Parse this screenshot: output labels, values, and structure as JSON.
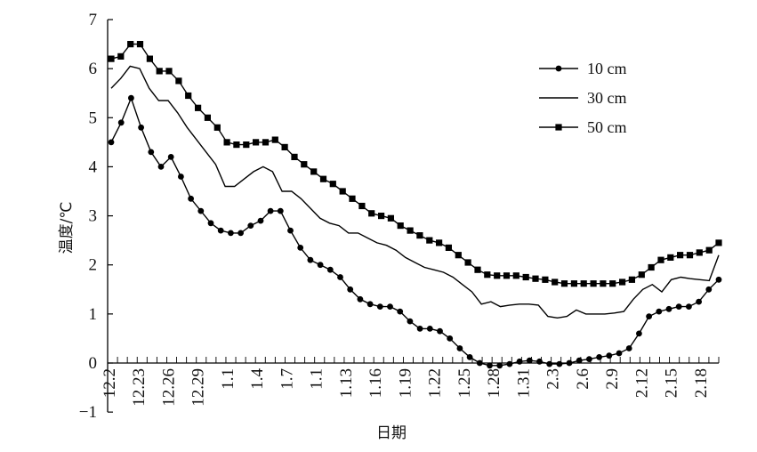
{
  "chart_data": {
    "type": "line",
    "title": "",
    "xlabel": "日期",
    "ylabel": "温度/℃",
    "ylim": [
      -1,
      7
    ],
    "yticks": [
      -1,
      0,
      1,
      2,
      3,
      4,
      5,
      6,
      7
    ],
    "xtick_labels": [
      "12.2",
      "12.23",
      "12.26",
      "12.29",
      "1.1",
      "1.4",
      "1.7",
      "1.1",
      "1.13",
      "1.16",
      "1.19",
      "1.22",
      "1.25",
      "1.28",
      "1.31",
      "2.3",
      "2.6",
      "2.9",
      "2.12",
      "2.15",
      "2.18"
    ],
    "grid": false,
    "legend_position": "top-right",
    "series": [
      {
        "name": "10 cm",
        "marker": "circle",
        "color": "#000000",
        "values": [
          4.5,
          4.9,
          5.4,
          4.8,
          4.3,
          4.0,
          4.2,
          3.8,
          3.35,
          3.1,
          2.85,
          2.7,
          2.65,
          2.65,
          2.8,
          2.9,
          3.1,
          3.1,
          2.7,
          2.35,
          2.1,
          2.0,
          1.9,
          1.75,
          1.5,
          1.3,
          1.2,
          1.15,
          1.15,
          1.05,
          0.85,
          0.7,
          0.7,
          0.65,
          0.5,
          0.3,
          0.12,
          0.0,
          -0.05,
          -0.05,
          -0.02,
          0.03,
          0.05,
          0.03,
          -0.02,
          -0.02,
          0.0,
          0.05,
          0.08,
          0.12,
          0.15,
          0.2,
          0.3,
          0.6,
          0.95,
          1.05,
          1.1,
          1.15,
          1.15,
          1.25,
          1.5,
          1.7
        ]
      },
      {
        "name": "30 cm",
        "marker": "none",
        "color": "#000000",
        "values": [
          5.6,
          5.8,
          6.05,
          6.0,
          5.6,
          5.35,
          5.35,
          5.1,
          4.8,
          4.55,
          4.3,
          4.05,
          3.6,
          3.6,
          3.75,
          3.9,
          4.0,
          3.9,
          3.5,
          3.5,
          3.35,
          3.15,
          2.95,
          2.85,
          2.8,
          2.65,
          2.65,
          2.55,
          2.45,
          2.4,
          2.3,
          2.15,
          2.05,
          1.95,
          1.9,
          1.85,
          1.75,
          1.6,
          1.45,
          1.2,
          1.25,
          1.15,
          1.18,
          1.2,
          1.2,
          1.18,
          0.95,
          0.92,
          0.95,
          1.08,
          1.0,
          1.0,
          1.0,
          1.02,
          1.05,
          1.3,
          1.5,
          1.6,
          1.45,
          1.7,
          1.75,
          1.72,
          1.7,
          1.68,
          2.2
        ]
      },
      {
        "name": "50 cm",
        "marker": "square",
        "color": "#000000",
        "values": [
          6.2,
          6.25,
          6.5,
          6.5,
          6.2,
          5.95,
          5.95,
          5.75,
          5.45,
          5.2,
          5.0,
          4.8,
          4.5,
          4.45,
          4.45,
          4.5,
          4.5,
          4.55,
          4.4,
          4.2,
          4.05,
          3.9,
          3.75,
          3.65,
          3.5,
          3.35,
          3.2,
          3.05,
          3.0,
          2.95,
          2.8,
          2.7,
          2.6,
          2.5,
          2.45,
          2.35,
          2.2,
          2.05,
          1.9,
          1.8,
          1.78,
          1.78,
          1.78,
          1.75,
          1.72,
          1.7,
          1.65,
          1.62,
          1.62,
          1.62,
          1.62,
          1.62,
          1.62,
          1.65,
          1.7,
          1.8,
          1.95,
          2.1,
          2.15,
          2.2,
          2.2,
          2.25,
          2.3,
          2.45
        ]
      }
    ]
  }
}
